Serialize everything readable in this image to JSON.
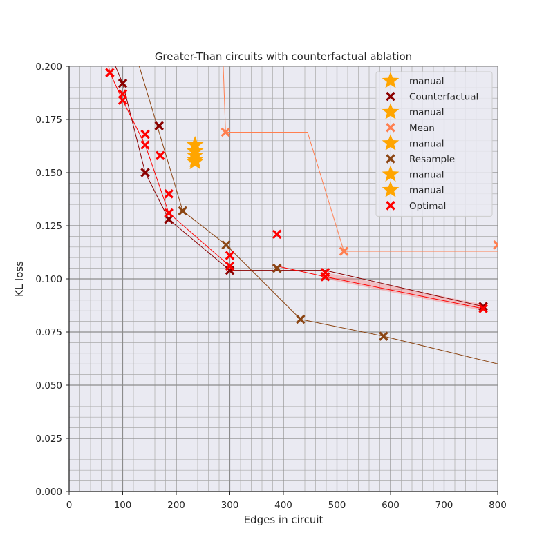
{
  "chart_data": {
    "type": "scatter",
    "title": "Greater-Than circuits with counterfactual ablation",
    "xlabel": "Edges in circuit",
    "ylabel": "KL loss",
    "xlim": [
      0,
      800
    ],
    "ylim": [
      0,
      0.2
    ],
    "xticks": [
      0,
      100,
      200,
      300,
      400,
      500,
      600,
      700,
      800
    ],
    "yticks": [
      0.0,
      0.025,
      0.05,
      0.075,
      0.1,
      0.125,
      0.15,
      0.175,
      0.2
    ],
    "xtick_labels": [
      "0",
      "100",
      "200",
      "300",
      "400",
      "500",
      "600",
      "700",
      "800"
    ],
    "ytick_labels": [
      "0.000",
      "0.025",
      "0.050",
      "0.075",
      "0.100",
      "0.125",
      "0.150",
      "0.175",
      "0.200"
    ],
    "grid": true,
    "legend_position": "top-right",
    "colors": {
      "manual": "#ffa500",
      "counterfactual": "#8b0000",
      "mean": "#ff7f50",
      "resample": "#8b4513",
      "optimal": "#ff0000",
      "background": "#eaeaf2",
      "grid_major": "#8c8c8c",
      "grid_minor": "#aaaaaa"
    },
    "legend": [
      {
        "label": "manual",
        "marker": "star",
        "color": "#ffa500"
      },
      {
        "label": "Counterfactual",
        "marker": "x",
        "color": "#8b0000"
      },
      {
        "label": "manual",
        "marker": "star",
        "color": "#ffa500"
      },
      {
        "label": "Mean",
        "marker": "x",
        "color": "#ff7f50"
      },
      {
        "label": "manual",
        "marker": "star",
        "color": "#ffa500"
      },
      {
        "label": "Resample",
        "marker": "x",
        "color": "#8b4513"
      },
      {
        "label": "manual",
        "marker": "star",
        "color": "#ffa500"
      },
      {
        "label": "manual",
        "marker": "star",
        "color": "#ffa500"
      },
      {
        "label": "Optimal",
        "marker": "x",
        "color": "#ff0000"
      }
    ],
    "series": [
      {
        "name": "Counterfactual",
        "marker": "x",
        "color": "#8b0000",
        "points": [
          [
            100,
            0.192
          ],
          [
            142,
            0.15
          ],
          [
            168,
            0.172
          ],
          [
            186,
            0.128
          ],
          [
            300,
            0.104
          ],
          [
            388,
            0.105
          ],
          [
            478,
            0.101
          ],
          [
            773,
            0.087
          ]
        ],
        "frontier": [
          [
            78,
            0.205
          ],
          [
            100,
            0.192
          ],
          [
            142,
            0.15
          ],
          [
            186,
            0.128
          ],
          [
            300,
            0.104
          ],
          [
            478,
            0.104
          ],
          [
            773,
            0.087
          ]
        ]
      },
      {
        "name": "Mean",
        "marker": "x",
        "color": "#ff7f50",
        "points": [
          [
            292,
            0.169
          ],
          [
            513,
            0.113
          ],
          [
            800,
            0.116
          ]
        ],
        "frontier": [
          [
            287,
            0.205
          ],
          [
            292,
            0.169
          ],
          [
            445,
            0.169
          ],
          [
            513,
            0.113
          ],
          [
            800,
            0.113
          ]
        ]
      },
      {
        "name": "Resample",
        "marker": "x",
        "color": "#8b4513",
        "points": [
          [
            212,
            0.132
          ],
          [
            293,
            0.116
          ],
          [
            388,
            0.105
          ],
          [
            432,
            0.081
          ],
          [
            587,
            0.073
          ]
        ],
        "frontier": [
          [
            125,
            0.205
          ],
          [
            212,
            0.132
          ],
          [
            293,
            0.116
          ],
          [
            432,
            0.081
          ],
          [
            587,
            0.073
          ],
          [
            800,
            0.06
          ]
        ]
      },
      {
        "name": "Optimal",
        "marker": "x",
        "color": "#ff0000",
        "points": [
          [
            76,
            0.197
          ],
          [
            100,
            0.187
          ],
          [
            100,
            0.184
          ],
          [
            142,
            0.168
          ],
          [
            142,
            0.163
          ],
          [
            170,
            0.158
          ],
          [
            186,
            0.14
          ],
          [
            186,
            0.131
          ],
          [
            300,
            0.111
          ],
          [
            300,
            0.106
          ],
          [
            388,
            0.121
          ],
          [
            478,
            0.103
          ],
          [
            478,
            0.101
          ],
          [
            773,
            0.086
          ]
        ],
        "frontier": [
          [
            70,
            0.205
          ],
          [
            76,
            0.197
          ],
          [
            100,
            0.184
          ],
          [
            142,
            0.163
          ],
          [
            186,
            0.131
          ],
          [
            300,
            0.106
          ],
          [
            388,
            0.106
          ],
          [
            478,
            0.101
          ],
          [
            773,
            0.086
          ]
        ]
      },
      {
        "name": "manual",
        "marker": "star",
        "color": "#ffa500",
        "points": [
          [
            235,
            0.163
          ],
          [
            235,
            0.16
          ],
          [
            235,
            0.158
          ],
          [
            235,
            0.156
          ],
          [
            235,
            0.155
          ]
        ]
      }
    ]
  }
}
